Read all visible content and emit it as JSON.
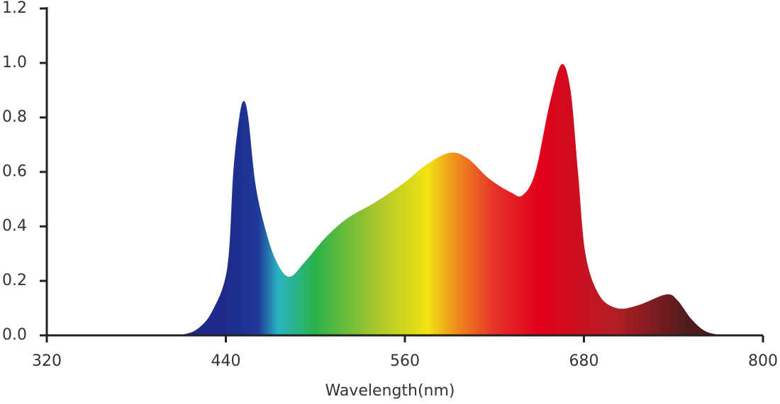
{
  "chart_data": {
    "type": "area",
    "xlabel": "Wavelength(nm)",
    "x": [
      408,
      420,
      431,
      441,
      445,
      449,
      452,
      455,
      460,
      467,
      474,
      482.5,
      493,
      507,
      521.5,
      540.5,
      559.5,
      574,
      590,
      602,
      616.5,
      631,
      639,
      647.5,
      657,
      665,
      671,
      676,
      681,
      690,
      702,
      716,
      735,
      742.5,
      752,
      761.5,
      773
    ],
    "values": [
      0,
      0.02,
      0.09,
      0.25,
      0.6,
      0.8,
      0.86,
      0.8,
      0.55,
      0.38,
      0.27,
      0.215,
      0.27,
      0.36,
      0.43,
      0.49,
      0.56,
      0.625,
      0.67,
      0.65,
      0.575,
      0.525,
      0.515,
      0.6,
      0.85,
      0.995,
      0.9,
      0.6,
      0.3,
      0.15,
      0.1,
      0.11,
      0.15,
      0.13,
      0.06,
      0.015,
      0
    ],
    "xlim": [
      320,
      800
    ],
    "xticks": [
      320,
      440,
      560,
      680,
      800
    ],
    "ylim": [
      0,
      1.2
    ],
    "yticks": [
      {
        "value": 0,
        "label": "0.0"
      },
      0.2,
      0.4,
      0.6,
      0.8,
      {
        "value": 1,
        "label": "1.0"
      },
      1.2
    ]
  }
}
